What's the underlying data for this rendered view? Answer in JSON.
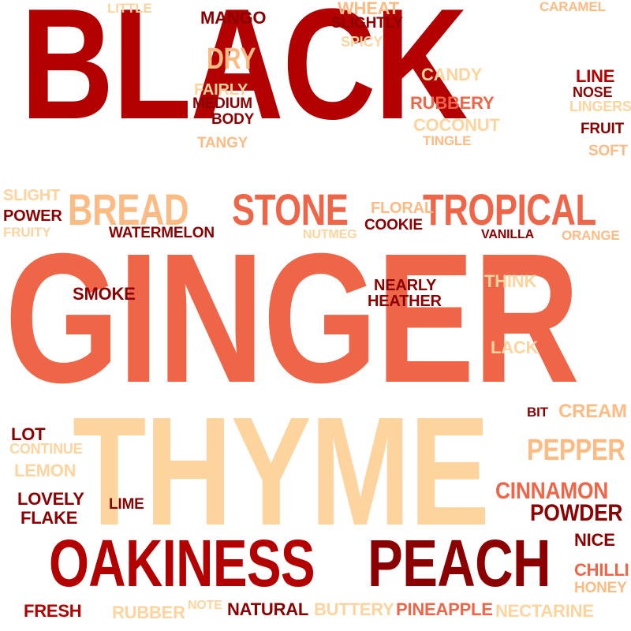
{
  "words": {
    "black": "BLACK",
    "ginger": "GINGER",
    "thyme": "THYME",
    "oakiness": "OAKINESS",
    "peach": "PEACH",
    "stone": "STONE",
    "tropical": "TROPICAL",
    "bread": "BREAD",
    "dry": "DRY",
    "mango": "MANGO",
    "little": "LITTLE",
    "wheat": "WHEAT",
    "slightly": "SLIGHTLY",
    "spicy": "SPICY",
    "caramel": "CARAMEL",
    "candy": "CANDY",
    "line": "LINE",
    "nose": "NOSE",
    "lingers": "LINGERS",
    "fairly": "FAIRLY",
    "medium": "MEDIUM",
    "body": "BODY",
    "rubbery": "RUBBERY",
    "coconut": "COCONUT",
    "tingle": "TINGLE",
    "fruit": "FRUIT",
    "soft": "SOFT",
    "tangy": "TANGY",
    "slight": "SLIGHT",
    "power": "POWER",
    "fruity": "FRUITY",
    "floral": "FLORAL",
    "cookie": "COOKIE",
    "watermelon": "WATERMELON",
    "nutmeg": "NUTMEG",
    "vanilla": "VANILLA",
    "orange": "ORANGE",
    "smoke": "SMOKE",
    "nearly": "NEARLY",
    "heather": "HEATHER",
    "think": "THINK",
    "lack": "LACK",
    "bit": "BIT",
    "cream": "CREAM",
    "lot": "LOT",
    "continue": "CONTINUE",
    "pepper": "PEPPER",
    "lemon": "LEMON",
    "cinnamon": "CINNAMON",
    "lovely": "LOVELY",
    "lime": "LIME",
    "powder": "POWDER",
    "flake": "FLAKE",
    "nice": "NICE",
    "chilli": "CHILLI",
    "honey": "HONEY",
    "fresh": "FRESH",
    "rubber": "RUBBER",
    "note": "NOTE",
    "natural": "NATURAL",
    "buttery": "BUTTERY",
    "pineapple": "PINEAPPLE",
    "nectarine": "NECTARINE"
  },
  "colors": {
    "dark_red": "#b30000",
    "maroon": "#8b0000",
    "coral": "#ef6548",
    "peach": "#fdd49e",
    "light_orange": "#fdbb84"
  }
}
